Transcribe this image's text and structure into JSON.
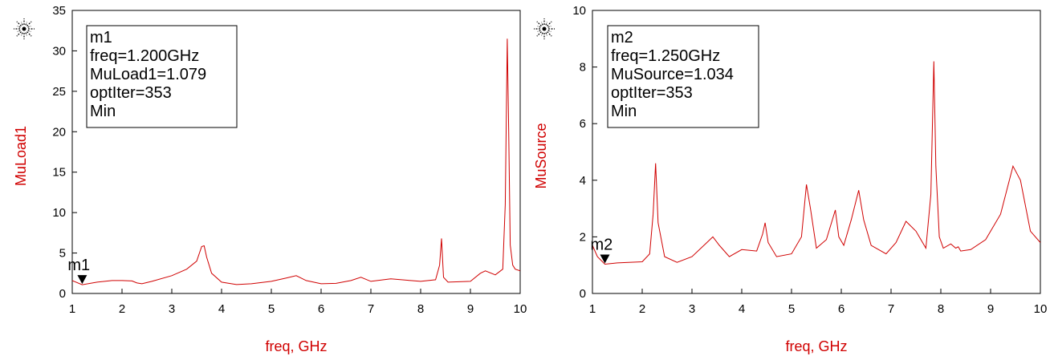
{
  "colors": {
    "trace": "#d00000",
    "axis": "#000000",
    "label": "#d00000",
    "background": "#ffffff"
  },
  "chart_data": [
    {
      "type": "line",
      "ylabel": "MuLoad1",
      "xlabel": "freq, GHz",
      "xlim": [
        1,
        10
      ],
      "ylim": [
        0,
        35
      ],
      "xticks": [
        1,
        2,
        3,
        4,
        5,
        6,
        7,
        8,
        9,
        10
      ],
      "yticks": [
        0,
        5,
        10,
        15,
        20,
        25,
        30,
        35
      ],
      "grid": false,
      "logo_icon": "starburst-logo-icon",
      "series": [
        {
          "x": [
            1.0,
            1.2,
            1.5,
            1.8,
            2.0,
            2.2,
            2.3,
            2.4,
            2.6,
            3.0,
            3.3,
            3.5,
            3.6,
            3.65,
            3.7,
            3.8,
            4.0,
            4.3,
            4.6,
            5.0,
            5.3,
            5.5,
            5.7,
            6.0,
            6.3,
            6.6,
            6.8,
            7.0,
            7.4,
            7.8,
            8.0,
            8.3,
            8.38,
            8.42,
            8.46,
            8.55,
            9.0,
            9.2,
            9.3,
            9.5,
            9.65,
            9.7,
            9.74,
            9.77,
            9.8,
            9.85,
            9.9,
            10.0
          ],
          "y": [
            1.6,
            1.08,
            1.4,
            1.6,
            1.6,
            1.55,
            1.3,
            1.2,
            1.5,
            2.2,
            3.0,
            4.0,
            5.8,
            5.9,
            4.5,
            2.5,
            1.4,
            1.1,
            1.2,
            1.5,
            1.9,
            2.2,
            1.6,
            1.2,
            1.25,
            1.6,
            2.0,
            1.5,
            1.8,
            1.6,
            1.5,
            1.7,
            3.5,
            6.8,
            2.0,
            1.4,
            1.5,
            2.5,
            2.8,
            2.3,
            3.0,
            11.0,
            31.5,
            20.0,
            6.0,
            3.5,
            3.0,
            2.8
          ]
        }
      ],
      "marker": {
        "name": "m1",
        "lines": [
          "m1",
          "freq=1.200GHz",
          "MuLoad1=1.079",
          "optIter=353",
          "Min"
        ],
        "x": 1.2,
        "y": 1.079
      }
    },
    {
      "type": "line",
      "ylabel": "MuSource",
      "xlabel": "freq, GHz",
      "xlim": [
        1,
        10
      ],
      "ylim": [
        0,
        10
      ],
      "xticks": [
        1,
        2,
        3,
        4,
        5,
        6,
        7,
        8,
        9,
        10
      ],
      "yticks": [
        0,
        2,
        4,
        6,
        8,
        10
      ],
      "grid": false,
      "logo_icon": "starburst-logo-icon",
      "series": [
        {
          "x": [
            1.0,
            1.1,
            1.25,
            1.5,
            2.0,
            2.15,
            2.22,
            2.27,
            2.32,
            2.45,
            2.7,
            3.0,
            3.3,
            3.42,
            3.55,
            3.75,
            4.0,
            4.3,
            4.42,
            4.47,
            4.53,
            4.7,
            5.0,
            5.2,
            5.3,
            5.38,
            5.5,
            5.7,
            5.88,
            5.95,
            6.05,
            6.2,
            6.35,
            6.45,
            6.6,
            6.9,
            7.1,
            7.3,
            7.5,
            7.7,
            7.8,
            7.86,
            7.9,
            7.97,
            8.05,
            8.2,
            8.3,
            8.35,
            8.4,
            8.6,
            8.9,
            9.2,
            9.45,
            9.6,
            9.8,
            10.0
          ],
          "y": [
            1.7,
            1.3,
            1.034,
            1.08,
            1.12,
            1.4,
            2.8,
            4.6,
            2.5,
            1.3,
            1.1,
            1.3,
            1.8,
            2.0,
            1.7,
            1.3,
            1.55,
            1.5,
            2.1,
            2.5,
            1.8,
            1.3,
            1.4,
            2.0,
            3.85,
            3.0,
            1.6,
            1.9,
            2.95,
            2.0,
            1.7,
            2.6,
            3.65,
            2.6,
            1.7,
            1.4,
            1.8,
            2.55,
            2.2,
            1.6,
            3.5,
            8.2,
            4.5,
            2.0,
            1.6,
            1.75,
            1.6,
            1.65,
            1.5,
            1.55,
            1.9,
            2.8,
            4.5,
            4.0,
            2.2,
            1.8
          ]
        }
      ],
      "marker": {
        "name": "m2",
        "lines": [
          "m2",
          "freq=1.250GHz",
          "MuSource=1.034",
          "optIter=353",
          "Min"
        ],
        "x": 1.25,
        "y": 1.034
      }
    }
  ]
}
